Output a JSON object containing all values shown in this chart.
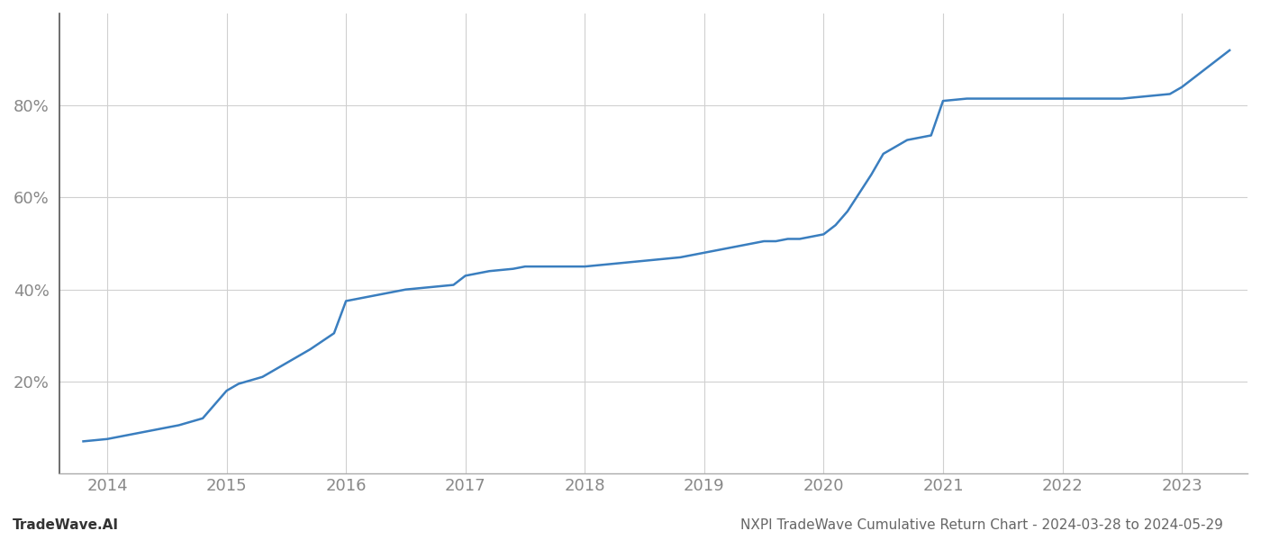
{
  "title": "NXPI TradeWave Cumulative Return Chart - 2024-03-28 to 2024-05-29",
  "watermark": "TradeWave.AI",
  "line_color": "#3a7ebf",
  "background_color": "#ffffff",
  "grid_color": "#d0d0d0",
  "x_years": [
    2014,
    2015,
    2016,
    2017,
    2018,
    2019,
    2020,
    2021,
    2022,
    2023
  ],
  "data_x": [
    2013.8,
    2014.0,
    2014.2,
    2014.4,
    2014.6,
    2014.8,
    2015.0,
    2015.1,
    2015.3,
    2015.5,
    2015.7,
    2015.9,
    2016.0,
    2016.1,
    2016.2,
    2016.3,
    2016.5,
    2016.7,
    2016.9,
    2017.0,
    2017.2,
    2017.4,
    2017.5,
    2017.7,
    2017.9,
    2018.0,
    2018.2,
    2018.4,
    2018.6,
    2018.8,
    2019.0,
    2019.1,
    2019.2,
    2019.3,
    2019.4,
    2019.5,
    2019.6,
    2019.7,
    2019.8,
    2019.9,
    2020.0,
    2020.1,
    2020.2,
    2020.3,
    2020.4,
    2020.5,
    2020.6,
    2020.7,
    2020.8,
    2020.9,
    2021.0,
    2021.2,
    2021.5,
    2021.7,
    2021.9,
    2022.0,
    2022.2,
    2022.5,
    2022.7,
    2022.9,
    2023.0,
    2023.2,
    2023.4
  ],
  "data_y": [
    7.0,
    7.5,
    8.5,
    9.5,
    10.5,
    12.0,
    18.0,
    19.5,
    21.0,
    24.0,
    27.0,
    30.5,
    37.5,
    38.0,
    38.5,
    39.0,
    40.0,
    40.5,
    41.0,
    43.0,
    44.0,
    44.5,
    45.0,
    45.0,
    45.0,
    45.0,
    45.5,
    46.0,
    46.5,
    47.0,
    48.0,
    48.5,
    49.0,
    49.5,
    50.0,
    50.5,
    50.5,
    51.0,
    51.0,
    51.5,
    52.0,
    54.0,
    57.0,
    61.0,
    65.0,
    69.5,
    71.0,
    72.5,
    73.0,
    73.5,
    81.0,
    81.5,
    81.5,
    81.5,
    81.5,
    81.5,
    81.5,
    81.5,
    82.0,
    82.5,
    84.0,
    88.0,
    92.0
  ],
  "xlim": [
    2013.6,
    2023.55
  ],
  "ylim": [
    0,
    100
  ],
  "yticks": [
    20,
    40,
    60,
    80
  ],
  "ytick_labels": [
    "20%",
    "40%",
    "60%",
    "80%"
  ],
  "left_spine_color": "#555555",
  "bottom_spine_color": "#aaaaaa",
  "tick_color": "#888888",
  "title_color": "#666666",
  "watermark_color": "#333333",
  "title_fontsize": 11,
  "watermark_fontsize": 11,
  "tick_fontsize": 13
}
